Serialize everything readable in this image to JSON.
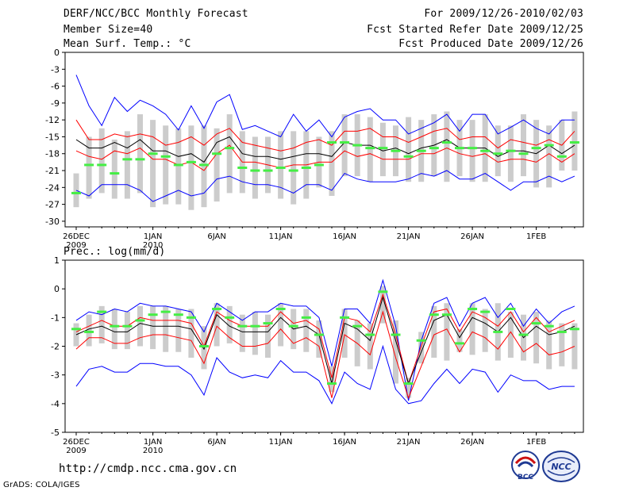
{
  "header": {
    "title": "DERF/NCC/BCC Monthly Forecast",
    "member": "Member Size=40",
    "variable": "Mean Surf. Temp.: °C",
    "period": "For 2009/12/26-2010/02/03",
    "started": "Fcst Started Refer Date 2009/12/25",
    "produced": "Fcst Produced Date 2009/12/26"
  },
  "footer": {
    "url": "http://cmdp.ncc.cma.gov.cn",
    "credit": "GrADS: COLA/IGES",
    "logo_bcc": "BCC",
    "logo_ncc": "NCC"
  },
  "colors": {
    "ensemble_max_min": "#0000ff",
    "spread": "#ff0000",
    "mean": "#000000",
    "median_marker": "#44ee44",
    "box": "#cccccc"
  },
  "chart_data": [
    {
      "type": "line",
      "title": "Mean Surf. Temp.: °C",
      "x_start": "2009-12-26",
      "x_ticks": [
        {
          "day": 0,
          "label": "26DEC",
          "sub": "2009"
        },
        {
          "day": 6,
          "label": "1JAN",
          "sub": "2010"
        },
        {
          "day": 11,
          "label": "6JAN",
          "sub": ""
        },
        {
          "day": 16,
          "label": "11JAN",
          "sub": ""
        },
        {
          "day": 21,
          "label": "16JAN",
          "sub": ""
        },
        {
          "day": 26,
          "label": "21JAN",
          "sub": ""
        },
        {
          "day": 31,
          "label": "26JAN",
          "sub": ""
        },
        {
          "day": 36,
          "label": "1FEB",
          "sub": ""
        }
      ],
      "ylim": [
        -31,
        0
      ],
      "yticks": [
        0,
        -3,
        -6,
        -9,
        -12,
        -15,
        -18,
        -21,
        -24,
        -27,
        -30
      ],
      "box_low": [
        -27.5,
        -26,
        -25,
        -26,
        -26,
        -25,
        -27.5,
        -27,
        -27,
        -28,
        -27.5,
        -26.5,
        -25,
        -25,
        -26,
        -25,
        -26,
        -27,
        -26,
        -24,
        -25.5,
        -22,
        -22,
        -23,
        -22,
        -22,
        -23,
        -23,
        -22,
        -23,
        -22,
        -23,
        -23,
        -22,
        -23,
        -22,
        -24,
        -24,
        -21,
        -21
      ],
      "box_high": [
        -21.5,
        -15,
        -13.5,
        -15.5,
        -14,
        -11,
        -12,
        -13,
        -13.5,
        -13,
        -13,
        -13.5,
        -11,
        -14,
        -15,
        -15,
        -14,
        -14,
        -14,
        -15,
        -14,
        -11,
        -11,
        -11.5,
        -12.5,
        -13,
        -11.5,
        -12,
        -11,
        -10.5,
        -12,
        -12,
        -11,
        -13,
        -13,
        -11,
        -12,
        -13,
        -12,
        -10.5
      ],
      "series": [
        {
          "name": "max",
          "color": "#0000ff",
          "values": [
            -4,
            -9.5,
            -13,
            -8,
            -10.5,
            -8.5,
            -9.5,
            -11,
            -13.8,
            -9.5,
            -13.5,
            -8.8,
            -7.5,
            -13.7,
            -13,
            -14,
            -15,
            -11,
            -14,
            -12,
            -15,
            -11.5,
            -10.5,
            -10,
            -12,
            -12,
            -14.5,
            -13.5,
            -12.5,
            -11,
            -14,
            -11,
            -11,
            -14.5,
            -13.3,
            -12,
            -13.5,
            -14.5,
            -12,
            -12
          ]
        },
        {
          "name": "upper",
          "color": "#ff0000",
          "values": [
            -12,
            -15.5,
            -15.5,
            -14.5,
            -15,
            -14.5,
            -15,
            -16.5,
            -16,
            -15,
            -16.5,
            -14.5,
            -13.5,
            -16,
            -16.5,
            -17,
            -17.5,
            -17,
            -16,
            -15.5,
            -16.5,
            -14,
            -14,
            -13.5,
            -15,
            -15,
            -16,
            -15,
            -14,
            -13.5,
            -15.5,
            -15,
            -15,
            -17,
            -15.5,
            -16,
            -16.5,
            -15.5,
            -16.5,
            -14
          ]
        },
        {
          "name": "mean",
          "color": "#000000",
          "values": [
            -15.5,
            -17,
            -17,
            -16,
            -17,
            -15.5,
            -17.5,
            -17.5,
            -18.5,
            -18,
            -19.5,
            -16,
            -15,
            -18,
            -18.5,
            -18.5,
            -19,
            -18.5,
            -18,
            -18,
            -18.5,
            -16,
            -16.5,
            -16.5,
            -17.5,
            -17,
            -18,
            -17,
            -16.5,
            -15.5,
            -17,
            -17,
            -17,
            -18.5,
            -17.5,
            -17.5,
            -18,
            -16.5,
            -18,
            -16.5
          ]
        },
        {
          "name": "lower",
          "color": "#ff0000",
          "values": [
            -17.5,
            -18.5,
            -19,
            -17.5,
            -18,
            -17,
            -19,
            -19,
            -20,
            -19.5,
            -21,
            -18,
            -16.5,
            -19.5,
            -19.5,
            -20,
            -20.5,
            -20,
            -20,
            -19.5,
            -19.5,
            -17.5,
            -18.5,
            -18,
            -19,
            -19,
            -19,
            -18,
            -18,
            -17,
            -18,
            -18.5,
            -18,
            -19.5,
            -19,
            -19,
            -19.5,
            -18,
            -19.5,
            -18
          ]
        },
        {
          "name": "min",
          "color": "#0000ff",
          "values": [
            -24.5,
            -25.5,
            -23.5,
            -23.5,
            -23.5,
            -24.5,
            -26.5,
            -25.5,
            -24.5,
            -25.5,
            -25,
            -22.5,
            -22,
            -23,
            -23.5,
            -23.5,
            -24,
            -25,
            -23.5,
            -23.5,
            -24.5,
            -21.5,
            -22.5,
            -23,
            -23,
            -23,
            -22.5,
            -21.5,
            -22,
            -21,
            -22.5,
            -22.5,
            -21.5,
            -23,
            -24.5,
            -23,
            -23,
            -22,
            -23,
            -22
          ]
        }
      ],
      "median": [
        -25,
        -20,
        -20,
        -21.5,
        -19,
        -19,
        -18,
        -18.5,
        -20,
        -19.5,
        -20,
        -18,
        -17,
        -20.5,
        -21,
        -21,
        -20.5,
        -21,
        -20.5,
        -20,
        -16,
        -16,
        -16.5,
        -17,
        -17,
        -17.5,
        -18.5,
        -17.5,
        -17,
        -16,
        -17,
        -17,
        -17.5,
        -18,
        -17.5,
        -18,
        -17,
        -16.5,
        -18.5,
        -16
      ]
    },
    {
      "type": "line",
      "title": "Prec.: log(mm/d)",
      "x_start": "2009-12-26",
      "x_ticks": [
        {
          "day": 0,
          "label": "26DEC",
          "sub": "2009"
        },
        {
          "day": 6,
          "label": "1JAN",
          "sub": "2010"
        },
        {
          "day": 11,
          "label": "6JAN",
          "sub": ""
        },
        {
          "day": 16,
          "label": "11JAN",
          "sub": ""
        },
        {
          "day": 21,
          "label": "16JAN",
          "sub": ""
        },
        {
          "day": 26,
          "label": "21JAN",
          "sub": ""
        },
        {
          "day": 31,
          "label": "26JAN",
          "sub": ""
        },
        {
          "day": 36,
          "label": "1FEB",
          "sub": ""
        }
      ],
      "ylim": [
        -5,
        1
      ],
      "yticks": [
        1,
        0,
        -1,
        -2,
        -3,
        -4,
        -5
      ],
      "box_low": [
        -2,
        -2,
        -1.9,
        -2.1,
        -2.1,
        -2,
        -2.1,
        -2.2,
        -2.2,
        -2.4,
        -2.8,
        -2,
        -1.9,
        -2.2,
        -2.3,
        -2.4,
        -2,
        -2.1,
        -2.2,
        -2.4,
        -3.6,
        -2.4,
        -2.7,
        -2.8,
        -1.2,
        -3.3,
        -3.8,
        -2.6,
        -2.4,
        -2.5,
        -2.2,
        -2.3,
        -2.2,
        -2.5,
        -2.4,
        -2.5,
        -2.6,
        -2.8,
        -2.7,
        -2.8
      ],
      "box_high": [
        -1.2,
        -0.9,
        -0.6,
        -0.7,
        -0.8,
        -0.6,
        -0.6,
        -0.6,
        -0.7,
        -0.7,
        -1.3,
        -0.5,
        -0.6,
        -0.9,
        -0.8,
        -0.9,
        -0.5,
        -0.7,
        -0.7,
        -1.1,
        -2.7,
        -0.7,
        -1.1,
        -1.2,
        0.1,
        -1.1,
        -3.1,
        -1.5,
        -0.6,
        -0.5,
        -1.4,
        -0.5,
        -0.7,
        -0.5,
        -0.8,
        -0.9,
        -0.8,
        -1.1,
        -1.2,
        -1.2
      ],
      "series": [
        {
          "name": "max",
          "color": "#0000ff",
          "values": [
            -1.1,
            -0.8,
            -0.9,
            -0.7,
            -0.8,
            -0.5,
            -0.6,
            -0.6,
            -0.7,
            -0.8,
            -1.5,
            -0.5,
            -0.8,
            -1.1,
            -0.8,
            -0.8,
            -0.5,
            -0.6,
            -0.6,
            -1.0,
            -2.7,
            -0.7,
            -0.7,
            -1.2,
            0.3,
            -1.3,
            -3.9,
            -1.8,
            -0.5,
            -0.3,
            -1.3,
            -0.5,
            -0.3,
            -1.0,
            -0.5,
            -1.3,
            -0.7,
            -1.2,
            -0.8,
            -0.6
          ]
        },
        {
          "name": "upper",
          "color": "#ff0000",
          "values": [
            -1.5,
            -1.3,
            -1.1,
            -1.3,
            -1.3,
            -1.0,
            -1.1,
            -1.1,
            -1.1,
            -1.2,
            -2.0,
            -0.8,
            -1.1,
            -1.3,
            -1.3,
            -1.3,
            -0.8,
            -1.2,
            -1.1,
            -1.4,
            -3.1,
            -1.0,
            -1.1,
            -1.5,
            -0.2,
            -1.6,
            -3.3,
            -2.0,
            -0.8,
            -0.7,
            -1.5,
            -0.8,
            -1.0,
            -1.3,
            -0.8,
            -1.5,
            -1.0,
            -1.5,
            -1.3,
            -1.1
          ]
        },
        {
          "name": "mean",
          "color": "#000000",
          "values": [
            -1.6,
            -1.4,
            -1.3,
            -1.5,
            -1.5,
            -1.2,
            -1.3,
            -1.3,
            -1.3,
            -1.4,
            -2.1,
            -0.9,
            -1.3,
            -1.5,
            -1.5,
            -1.5,
            -1.0,
            -1.4,
            -1.3,
            -1.6,
            -3.3,
            -1.2,
            -1.4,
            -1.8,
            -0.3,
            -1.8,
            -3.3,
            -2.2,
            -1.1,
            -0.9,
            -1.7,
            -1.0,
            -1.2,
            -1.5,
            -1.0,
            -1.7,
            -1.3,
            -1.6,
            -1.5,
            -1.3
          ]
        },
        {
          "name": "lower",
          "color": "#ff0000",
          "values": [
            -2.1,
            -1.7,
            -1.7,
            -1.9,
            -1.9,
            -1.7,
            -1.6,
            -1.6,
            -1.7,
            -1.8,
            -2.6,
            -1.3,
            -1.7,
            -2.0,
            -2.0,
            -1.9,
            -1.4,
            -1.9,
            -1.7,
            -2.0,
            -3.8,
            -1.6,
            -1.9,
            -2.3,
            -0.8,
            -2.4,
            -3.8,
            -2.7,
            -1.6,
            -1.4,
            -2.2,
            -1.5,
            -1.7,
            -2.1,
            -1.5,
            -2.2,
            -1.9,
            -2.3,
            -2.2,
            -2.0
          ]
        },
        {
          "name": "min",
          "color": "#0000ff",
          "values": [
            -3.4,
            -2.8,
            -2.7,
            -2.9,
            -2.9,
            -2.6,
            -2.6,
            -2.7,
            -2.7,
            -3.0,
            -3.7,
            -2.4,
            -2.9,
            -3.1,
            -3.0,
            -3.1,
            -2.5,
            -2.9,
            -2.9,
            -3.2,
            -4.0,
            -2.9,
            -3.3,
            -3.5,
            -2.0,
            -3.5,
            -4.0,
            -3.9,
            -3.3,
            -2.8,
            -3.3,
            -2.8,
            -2.9,
            -3.6,
            -3.0,
            -3.2,
            -3.2,
            -3.5,
            -3.4,
            -3.4
          ]
        }
      ],
      "median": [
        -1.4,
        -1.5,
        -0.8,
        -1.3,
        -1.3,
        -1.1,
        -0.9,
        -0.8,
        -0.9,
        -1.0,
        -2.0,
        -0.7,
        -1.0,
        -1.3,
        -1.3,
        -1.2,
        -0.7,
        -1.3,
        -1.0,
        -1.6,
        -3.3,
        -1.0,
        -1.3,
        -1.6,
        -0.1,
        -1.6,
        -3.3,
        -1.8,
        -0.9,
        -0.9,
        -1.9,
        -0.7,
        -0.8,
        -1.5,
        -0.7,
        -1.6,
        -1.2,
        -1.3,
        -1.5,
        -1.4
      ]
    }
  ]
}
